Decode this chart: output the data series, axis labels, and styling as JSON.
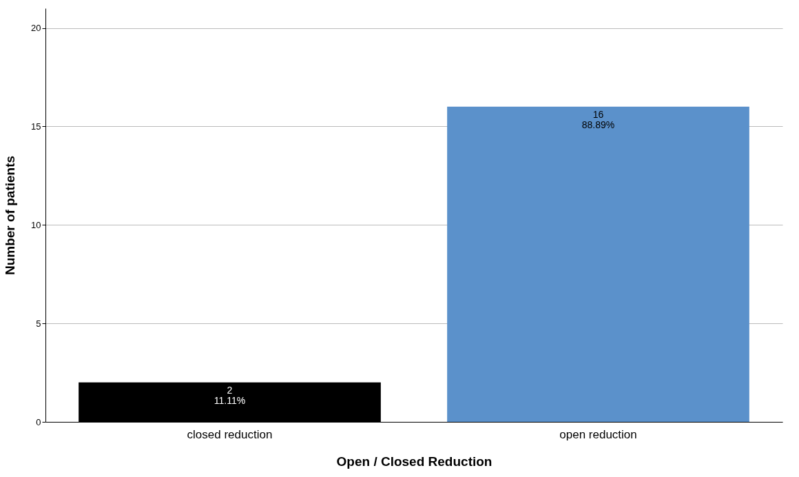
{
  "chart_data": {
    "type": "bar",
    "xlabel": "Open / Closed Reduction",
    "ylabel": "Number of patients",
    "categories": [
      "closed reduction",
      "open reduction"
    ],
    "values": [
      2,
      16
    ],
    "colors": [
      "#000000",
      "#5b91cb"
    ],
    "value_labels": [
      "2\n11.11%",
      "16\n88.89%"
    ],
    "ylim": [
      0,
      21
    ],
    "yticks": [
      0,
      5,
      10,
      15,
      20
    ],
    "grid": "y"
  }
}
